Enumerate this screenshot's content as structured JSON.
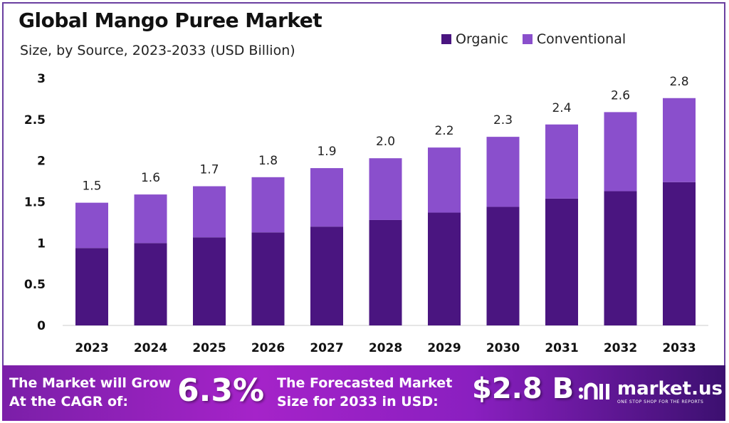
{
  "chart_data": {
    "type": "bar",
    "stacked": true,
    "title": "Global Mango Puree Market",
    "subtitle": "Size, by Source, 2023-2033 (USD Billion)",
    "categories": [
      "2023",
      "2024",
      "2025",
      "2026",
      "2027",
      "2028",
      "2029",
      "2030",
      "2031",
      "2032",
      "2033"
    ],
    "series": [
      {
        "name": "Organic",
        "color": "#4a1580",
        "values": [
          0.94,
          1.0,
          1.07,
          1.13,
          1.2,
          1.28,
          1.37,
          1.44,
          1.54,
          1.63,
          1.74
        ]
      },
      {
        "name": "Conventional",
        "color": "#8a4fcc",
        "values": [
          0.55,
          0.59,
          0.62,
          0.67,
          0.71,
          0.75,
          0.79,
          0.85,
          0.9,
          0.96,
          1.02
        ]
      }
    ],
    "totals_labels": [
      "1.5",
      "1.6",
      "1.7",
      "1.8",
      "1.9",
      "2.0",
      "2.2",
      "2.3",
      "2.4",
      "2.6",
      "2.8"
    ],
    "yticks": [
      "0",
      "0.5",
      "1",
      "1.5",
      "2",
      "2.5",
      "3"
    ],
    "ylim": [
      0,
      3
    ],
    "grid": false,
    "legend_position": "top-right"
  },
  "banner": {
    "cagr_text_1": "The Market will Grow",
    "cagr_text_2": "At the CAGR of:",
    "cagr_value": "6.3%",
    "forecast_text_1": "The Forecasted Market",
    "forecast_text_2": "Size for 2033 in USD:",
    "forecast_value": "$2.8 B",
    "logo_name": "market.us",
    "logo_tagline": "ONE STOP SHOP FOR THE REPORTS"
  }
}
